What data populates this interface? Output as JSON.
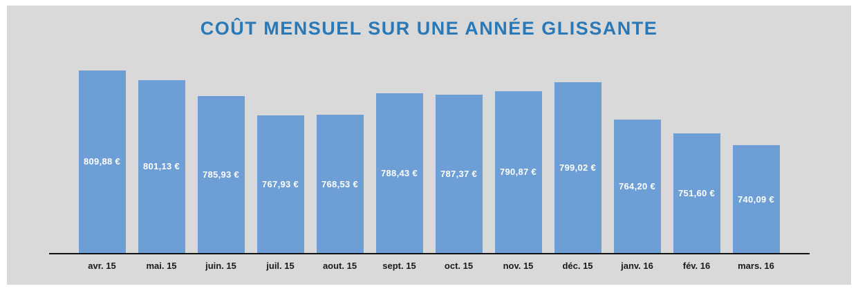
{
  "chart_data": {
    "type": "bar",
    "title": "COÛT MENSUEL SUR UNE ANNÉE GLISSANTE",
    "categories": [
      "avr. 15",
      "mai. 15",
      "juin. 15",
      "juil. 15",
      "aout. 15",
      "sept. 15",
      "oct. 15",
      "nov. 15",
      "déc. 15",
      "janv. 16",
      "fév. 16",
      "mars. 16"
    ],
    "values": [
      809.88,
      801.13,
      785.93,
      767.93,
      768.53,
      788.43,
      787.37,
      790.87,
      799.02,
      764.2,
      751.6,
      740.09
    ],
    "value_labels": [
      "809,88 €",
      "801,13 €",
      "785,93 €",
      "767,93 €",
      "768,53 €",
      "788,43 €",
      "787,37 €",
      "790,87 €",
      "799,02 €",
      "764,20 €",
      "751,60 €",
      "740,09 €"
    ],
    "ylim": [
      640,
      815
    ],
    "grid": false,
    "legend": false,
    "value_label_position": "centered-inside-bar",
    "colors": {
      "bar": "#6d9fd6",
      "title": "#2979b8",
      "panel_background": "#d9d9d9",
      "page_background": "#ffffff",
      "value_label": "#ffffff",
      "axis_line": "#111111",
      "x_label": "#1a1a1a"
    }
  }
}
